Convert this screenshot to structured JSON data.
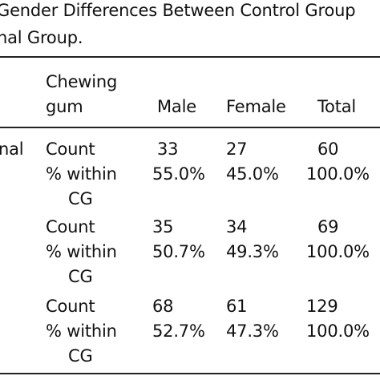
{
  "caption": {
    "line1": "Gender Differences Between Control Group",
    "line2": "nal Group."
  },
  "table": {
    "header": {
      "col1_line1": "Chewing",
      "col1_line2": "gum",
      "male": "Male",
      "female": "Female",
      "total": "Total"
    },
    "group_label": "nal",
    "rows": [
      {
        "stat": "Count",
        "male": "33",
        "female": "27",
        "total": "60"
      },
      {
        "stat": "% within",
        "male": "55.0%",
        "female": "45.0%",
        "total": "100.0%"
      },
      {
        "stat": "CG"
      },
      {
        "stat": "Count",
        "male": "35",
        "female": "34",
        "total": "69"
      },
      {
        "stat": "% within",
        "male": "50.7%",
        "female": "49.3%",
        "total": "100.0%"
      },
      {
        "stat": "CG"
      },
      {
        "stat": "Count",
        "male": "68",
        "female": "61",
        "total": "129"
      },
      {
        "stat": "% within",
        "male": "52.7%",
        "female": "47.3%",
        "total": "100.0%"
      },
      {
        "stat": "CG"
      }
    ]
  }
}
